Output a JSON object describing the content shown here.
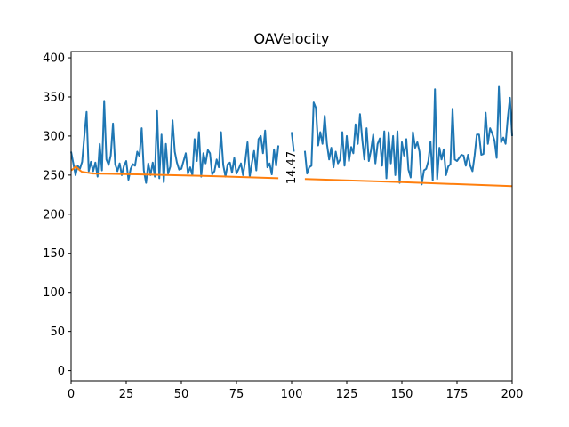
{
  "chart_data": {
    "type": "line",
    "title": "OAVelocity",
    "xlabel": "",
    "ylabel": "",
    "xlim": [
      0,
      200
    ],
    "ylim": [
      -13,
      408
    ],
    "xticks": [
      0,
      25,
      50,
      75,
      100,
      125,
      150,
      175,
      200
    ],
    "yticks": [
      0,
      50,
      100,
      150,
      200,
      250,
      300,
      350,
      400
    ],
    "grid": false,
    "annotation": {
      "text": "14.47",
      "x": 100,
      "y": 247
    },
    "series": [
      {
        "color": "#1f77b4",
        "segments": [
          [
            [
              0,
              280
            ],
            [
              1,
              265
            ],
            [
              2,
              250
            ],
            [
              3,
              262
            ],
            [
              4,
              258
            ],
            [
              5,
              267
            ],
            [
              6,
              300
            ],
            [
              7,
              331
            ],
            [
              8,
              255
            ],
            [
              9,
              267
            ],
            [
              10,
              255
            ],
            [
              11,
              266
            ],
            [
              12,
              248
            ],
            [
              13,
              290
            ],
            [
              14,
              256
            ],
            [
              15,
              345
            ],
            [
              16,
              270
            ],
            [
              17,
              263
            ],
            [
              18,
              275
            ],
            [
              19,
              316
            ],
            [
              20,
              264
            ],
            [
              21,
              255
            ],
            [
              22,
              265
            ],
            [
              23,
              250
            ],
            [
              24,
              262
            ],
            [
              25,
              268
            ],
            [
              26,
              244
            ],
            [
              27,
              258
            ],
            [
              28,
              264
            ],
            [
              29,
              262
            ],
            [
              30,
              280
            ],
            [
              31,
              274
            ],
            [
              32,
              310
            ],
            [
              33,
              256
            ],
            [
              34,
              240
            ],
            [
              35,
              265
            ],
            [
              36,
              250
            ],
            [
              37,
              266
            ],
            [
              38,
              248
            ],
            [
              39,
              332
            ],
            [
              40,
              246
            ],
            [
              41,
              302
            ],
            [
              42,
              241
            ],
            [
              43,
              290
            ],
            [
              44,
              252
            ],
            [
              45,
              261
            ],
            [
              46,
              320
            ],
            [
              47,
              280
            ],
            [
              48,
              266
            ],
            [
              49,
              257
            ],
            [
              50,
              258
            ],
            [
              51,
              268
            ],
            [
              52,
              278
            ],
            [
              53,
              252
            ],
            [
              54,
              260
            ],
            [
              55,
              250
            ],
            [
              56,
              296
            ],
            [
              57,
              268
            ],
            [
              58,
              305
            ],
            [
              59,
              248
            ],
            [
              60,
              278
            ],
            [
              61,
              265
            ],
            [
              62,
              282
            ],
            [
              63,
              278
            ],
            [
              64,
              251
            ],
            [
              65,
              255
            ],
            [
              66,
              270
            ],
            [
              67,
              260
            ],
            [
              68,
              305
            ],
            [
              69,
              263
            ],
            [
              70,
              248
            ],
            [
              71,
              264
            ],
            [
              72,
              266
            ],
            [
              73,
              253
            ],
            [
              74,
              272
            ],
            [
              75,
              252
            ],
            [
              76,
              258
            ],
            [
              77,
              265
            ],
            [
              78,
              250
            ],
            [
              79,
              268
            ],
            [
              80,
              292
            ],
            [
              81,
              248
            ],
            [
              82,
              266
            ],
            [
              83,
              281
            ],
            [
              84,
              256
            ],
            [
              85,
              296
            ],
            [
              86,
              300
            ],
            [
              87,
              278
            ],
            [
              88,
              307
            ],
            [
              89,
              260
            ],
            [
              90,
              265
            ],
            [
              91,
              251
            ],
            [
              92,
              283
            ],
            [
              93,
              262
            ],
            [
              94,
              288
            ]
          ],
          [
            [
              100,
              305
            ],
            [
              101,
              280
            ]
          ],
          [
            [
              106,
              281
            ],
            [
              107,
              252
            ],
            [
              108,
              260
            ],
            [
              109,
              262
            ],
            [
              110,
              343
            ],
            [
              111,
              336
            ],
            [
              112,
              288
            ],
            [
              113,
              305
            ],
            [
              114,
              290
            ],
            [
              115,
              326
            ],
            [
              116,
              290
            ],
            [
              117,
              270
            ],
            [
              118,
              285
            ],
            [
              119,
              260
            ],
            [
              120,
              280
            ],
            [
              121,
              265
            ],
            [
              122,
              270
            ],
            [
              123,
              305
            ],
            [
              124,
              262
            ],
            [
              125,
              300
            ],
            [
              126,
              268
            ],
            [
              127,
              286
            ],
            [
              128,
              278
            ],
            [
              129,
              315
            ],
            [
              130,
              290
            ],
            [
              131,
              328
            ],
            [
              132,
              296
            ],
            [
              133,
              270
            ],
            [
              134,
              310
            ],
            [
              135,
              268
            ],
            [
              136,
              282
            ],
            [
              137,
              302
            ],
            [
              138,
              265
            ],
            [
              139,
              290
            ],
            [
              140,
              297
            ],
            [
              141,
              262
            ],
            [
              142,
              306
            ],
            [
              143,
              246
            ],
            [
              144,
              305
            ],
            [
              145,
              265
            ],
            [
              146,
              300
            ],
            [
              147,
              250
            ],
            [
              148,
              306
            ],
            [
              149,
              240
            ],
            [
              150,
              292
            ],
            [
              151,
              275
            ],
            [
              152,
              296
            ],
            [
              153,
              257
            ],
            [
              154,
              247
            ],
            [
              155,
              305
            ],
            [
              156,
              285
            ],
            [
              157,
              292
            ],
            [
              158,
              280
            ],
            [
              159,
              238
            ],
            [
              160,
              256
            ],
            [
              161,
              258
            ],
            [
              162,
              268
            ],
            [
              163,
              293
            ],
            [
              164,
              243
            ],
            [
              165,
              360
            ],
            [
              166,
              245
            ],
            [
              167,
              285
            ],
            [
              168,
              270
            ],
            [
              169,
              283
            ],
            [
              170,
              250
            ],
            [
              171,
              261
            ],
            [
              172,
              264
            ],
            [
              173,
              335
            ],
            [
              174,
              270
            ],
            [
              175,
              268
            ],
            [
              176,
              272
            ],
            [
              177,
              276
            ],
            [
              178,
              275
            ],
            [
              179,
              262
            ],
            [
              180,
              276
            ],
            [
              181,
              262
            ],
            [
              182,
              255
            ],
            [
              183,
              275
            ],
            [
              184,
              302
            ],
            [
              185,
              302
            ],
            [
              186,
              276
            ],
            [
              187,
              277
            ],
            [
              188,
              330
            ],
            [
              189,
              290
            ],
            [
              190,
              310
            ],
            [
              191,
              303
            ],
            [
              192,
              294
            ],
            [
              193,
              272
            ],
            [
              194,
              363
            ],
            [
              195,
              292
            ],
            [
              196,
              298
            ],
            [
              197,
              290
            ],
            [
              198,
              322
            ],
            [
              199,
              349
            ],
            [
              200,
              300
            ]
          ]
        ]
      },
      {
        "color": "#ff7f0e",
        "segments": [
          [
            [
              0,
              256
            ],
            [
              1,
              258
            ],
            [
              2,
              261
            ],
            [
              3,
              259
            ],
            [
              4,
              256
            ],
            [
              5,
              254
            ],
            [
              10,
              252
            ],
            [
              30,
              251
            ],
            [
              60,
              249
            ],
            [
              94,
              246
            ]
          ],
          [
            [
              106,
              245
            ],
            [
              150,
              241
            ],
            [
              200,
              236
            ]
          ]
        ]
      }
    ]
  }
}
